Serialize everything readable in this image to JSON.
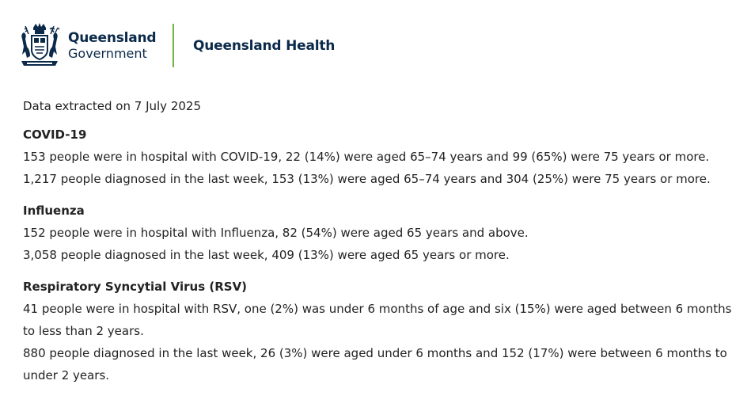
{
  "header": {
    "govt_line1": "Queensland",
    "govt_line2": "Government",
    "department": "Queensland Health",
    "crest_icon": "queensland-coat-of-arms-icon",
    "divider_color": "#6cb33f",
    "brand_color": "#0b2a4a"
  },
  "extract_date": "Data extracted on 7 July 2025",
  "sections": [
    {
      "title": "COVID-19",
      "lines": [
        "153 people were in hospital with COVID-19, 22 (14%) were aged 65–74 years and 99 (65%) were 75 years or more.",
        "1,217 people diagnosed in the last week, 153 (13%) were aged 65–74 years and 304 (25%) were 75 years or more."
      ]
    },
    {
      "title": "Influenza",
      "lines": [
        "152 people were in hospital with Influenza, 82 (54%) were aged 65 years and above.",
        "3,058 people diagnosed in the last week, 409 (13%) were aged 65 years or more."
      ]
    },
    {
      "title": "Respiratory Syncytial Virus (RSV)",
      "lines": [
        "41 people were in hospital with RSV, one (2%) was under 6 months of age and six (15%) were aged between 6 months to less than 2 years.",
        "880 people diagnosed in the last week, 26 (3%) were aged under 6 months and 152 (17%) were between 6 months to under 2 years."
      ]
    }
  ]
}
